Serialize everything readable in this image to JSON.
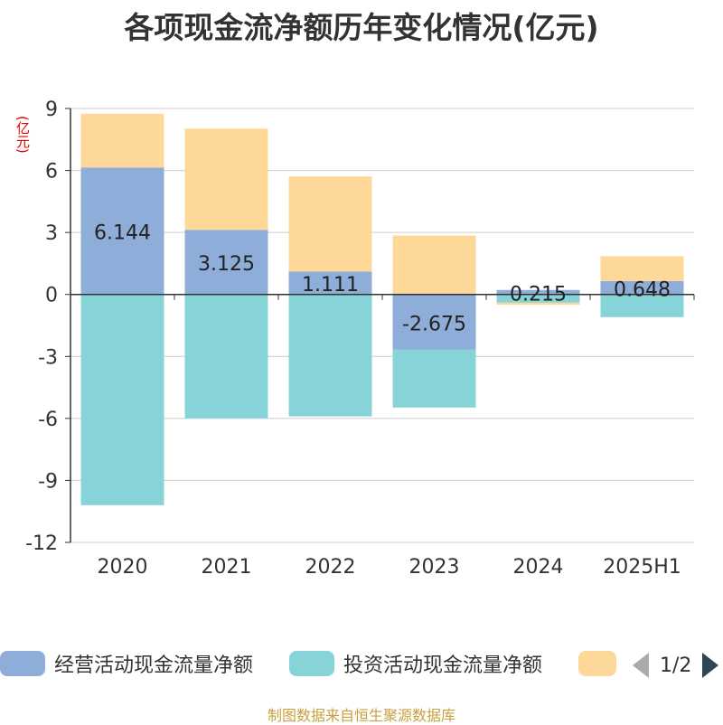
{
  "title": "各项现金流净额历年变化情况(亿元)",
  "unit_label": "(亿元)",
  "source": "制图数据来自恒生聚源数据库",
  "legend": {
    "page_text": "1/2"
  },
  "colors": {
    "operating": "#8eadd9",
    "investing": "#87d4d8",
    "financing": "#fdd898",
    "grid": "#cccccc",
    "axis": "#333333",
    "text": "#333333"
  },
  "chart_data": {
    "type": "bar",
    "stacked": true,
    "categories": [
      "2020",
      "2021",
      "2022",
      "2023",
      "2024",
      "2025H1"
    ],
    "ylim": [
      -12,
      9
    ],
    "yticks": [
      9,
      6,
      3,
      0,
      -3,
      -6,
      -9,
      -12
    ],
    "series": [
      {
        "name": "经营活动现金流量净额",
        "key": "operating",
        "values": [
          6.144,
          3.125,
          1.111,
          -2.675,
          0.215,
          0.648
        ],
        "labels": [
          "6.144",
          "3.125",
          "1.111",
          "-2.675",
          "0.215",
          "0.648"
        ]
      },
      {
        "name": "投资活动现金流量净额",
        "key": "investing",
        "values": [
          -10.2,
          -6.0,
          -5.9,
          -2.8,
          -0.4,
          -1.1
        ]
      },
      {
        "name": "",
        "key": "financing",
        "values": [
          2.6,
          4.9,
          4.6,
          2.85,
          -0.1,
          1.2
        ]
      }
    ]
  }
}
